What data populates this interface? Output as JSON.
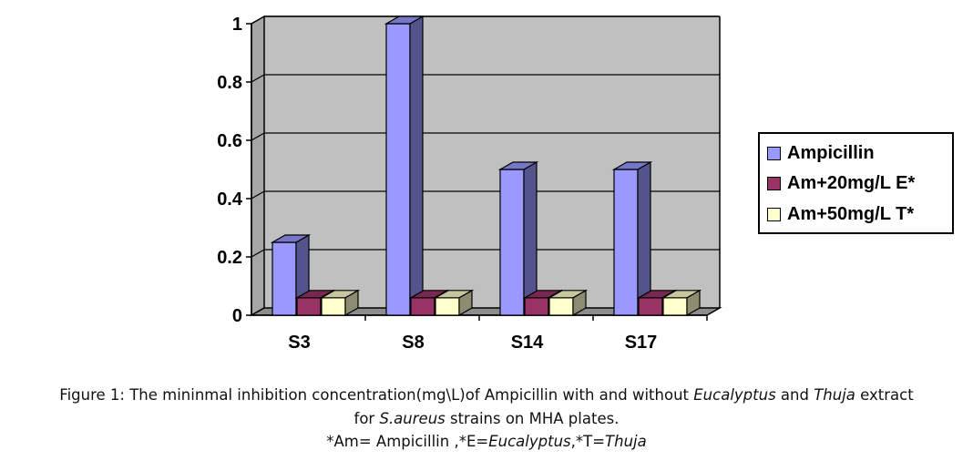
{
  "chart_data": {
    "type": "bar",
    "style": "3d-clustered-column",
    "categories": [
      "S3",
      "S8",
      "S14",
      "S17"
    ],
    "series": [
      {
        "name": "Ampicillin",
        "values": [
          0.25,
          1.0,
          0.5,
          0.5
        ],
        "color": "#9999ff"
      },
      {
        "name": "Am+20mg/L E*",
        "values": [
          0.06,
          0.06,
          0.06,
          0.06
        ],
        "color": "#993366"
      },
      {
        "name": "Am+50mg/L T*",
        "values": [
          0.06,
          0.06,
          0.06,
          0.06
        ],
        "color": "#ffffcc"
      }
    ],
    "ylim": [
      0,
      1
    ],
    "yticks": [
      "0",
      "0.2",
      "0.4",
      "0.6",
      "0.8",
      "1"
    ],
    "grid": true,
    "legend_position": "right",
    "plot_background": "#c0c0c0"
  },
  "caption": {
    "line1_a": "Figure 1: The mininmal inhibition concentration(mg\\L)of Ampicillin with and without ",
    "line1_b": "Eucalyptus",
    "line1_c": " and ",
    "line1_d": "Thuja",
    "line1_e": " extract",
    "line2_a": "for ",
    "line2_b": "S.aureus",
    "line2_c": " strains on MHA plates.",
    "line3_a": "*Am= Ampicillin ,*E=",
    "line3_b": "Eucalyptus",
    "line3_c": ",*T=",
    "line3_d": "Thuja"
  }
}
